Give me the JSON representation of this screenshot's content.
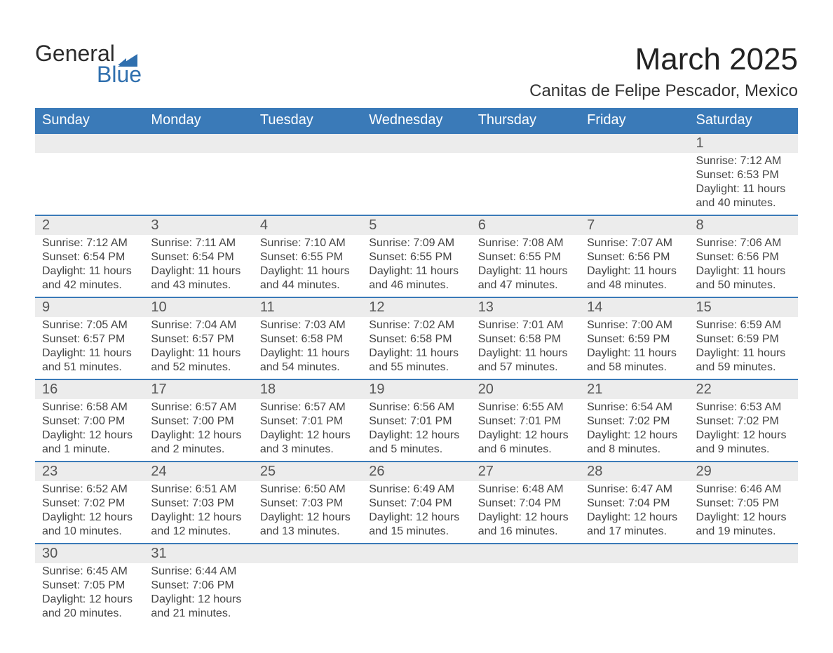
{
  "brand": {
    "word1": "General",
    "word2": "Blue",
    "accent": "#2f6fae"
  },
  "title": "March 2025",
  "location": "Canitas de Felipe Pescador, Mexico",
  "header_bg": "#3a7ab8",
  "stripe_bg": "#ececec",
  "columns": [
    "Sunday",
    "Monday",
    "Tuesday",
    "Wednesday",
    "Thursday",
    "Friday",
    "Saturday"
  ],
  "weeks": [
    {
      "days": [
        {
          "n": "",
          "sunrise": "",
          "sunset": "",
          "daylight1": "",
          "daylight2": ""
        },
        {
          "n": "",
          "sunrise": "",
          "sunset": "",
          "daylight1": "",
          "daylight2": ""
        },
        {
          "n": "",
          "sunrise": "",
          "sunset": "",
          "daylight1": "",
          "daylight2": ""
        },
        {
          "n": "",
          "sunrise": "",
          "sunset": "",
          "daylight1": "",
          "daylight2": ""
        },
        {
          "n": "",
          "sunrise": "",
          "sunset": "",
          "daylight1": "",
          "daylight2": ""
        },
        {
          "n": "",
          "sunrise": "",
          "sunset": "",
          "daylight1": "",
          "daylight2": ""
        },
        {
          "n": "1",
          "sunrise": "Sunrise: 7:12 AM",
          "sunset": "Sunset: 6:53 PM",
          "daylight1": "Daylight: 11 hours",
          "daylight2": "and 40 minutes."
        }
      ]
    },
    {
      "days": [
        {
          "n": "2",
          "sunrise": "Sunrise: 7:12 AM",
          "sunset": "Sunset: 6:54 PM",
          "daylight1": "Daylight: 11 hours",
          "daylight2": "and 42 minutes."
        },
        {
          "n": "3",
          "sunrise": "Sunrise: 7:11 AM",
          "sunset": "Sunset: 6:54 PM",
          "daylight1": "Daylight: 11 hours",
          "daylight2": "and 43 minutes."
        },
        {
          "n": "4",
          "sunrise": "Sunrise: 7:10 AM",
          "sunset": "Sunset: 6:55 PM",
          "daylight1": "Daylight: 11 hours",
          "daylight2": "and 44 minutes."
        },
        {
          "n": "5",
          "sunrise": "Sunrise: 7:09 AM",
          "sunset": "Sunset: 6:55 PM",
          "daylight1": "Daylight: 11 hours",
          "daylight2": "and 46 minutes."
        },
        {
          "n": "6",
          "sunrise": "Sunrise: 7:08 AM",
          "sunset": "Sunset: 6:55 PM",
          "daylight1": "Daylight: 11 hours",
          "daylight2": "and 47 minutes."
        },
        {
          "n": "7",
          "sunrise": "Sunrise: 7:07 AM",
          "sunset": "Sunset: 6:56 PM",
          "daylight1": "Daylight: 11 hours",
          "daylight2": "and 48 minutes."
        },
        {
          "n": "8",
          "sunrise": "Sunrise: 7:06 AM",
          "sunset": "Sunset: 6:56 PM",
          "daylight1": "Daylight: 11 hours",
          "daylight2": "and 50 minutes."
        }
      ]
    },
    {
      "days": [
        {
          "n": "9",
          "sunrise": "Sunrise: 7:05 AM",
          "sunset": "Sunset: 6:57 PM",
          "daylight1": "Daylight: 11 hours",
          "daylight2": "and 51 minutes."
        },
        {
          "n": "10",
          "sunrise": "Sunrise: 7:04 AM",
          "sunset": "Sunset: 6:57 PM",
          "daylight1": "Daylight: 11 hours",
          "daylight2": "and 52 minutes."
        },
        {
          "n": "11",
          "sunrise": "Sunrise: 7:03 AM",
          "sunset": "Sunset: 6:58 PM",
          "daylight1": "Daylight: 11 hours",
          "daylight2": "and 54 minutes."
        },
        {
          "n": "12",
          "sunrise": "Sunrise: 7:02 AM",
          "sunset": "Sunset: 6:58 PM",
          "daylight1": "Daylight: 11 hours",
          "daylight2": "and 55 minutes."
        },
        {
          "n": "13",
          "sunrise": "Sunrise: 7:01 AM",
          "sunset": "Sunset: 6:58 PM",
          "daylight1": "Daylight: 11 hours",
          "daylight2": "and 57 minutes."
        },
        {
          "n": "14",
          "sunrise": "Sunrise: 7:00 AM",
          "sunset": "Sunset: 6:59 PM",
          "daylight1": "Daylight: 11 hours",
          "daylight2": "and 58 minutes."
        },
        {
          "n": "15",
          "sunrise": "Sunrise: 6:59 AM",
          "sunset": "Sunset: 6:59 PM",
          "daylight1": "Daylight: 11 hours",
          "daylight2": "and 59 minutes."
        }
      ]
    },
    {
      "days": [
        {
          "n": "16",
          "sunrise": "Sunrise: 6:58 AM",
          "sunset": "Sunset: 7:00 PM",
          "daylight1": "Daylight: 12 hours",
          "daylight2": "and 1 minute."
        },
        {
          "n": "17",
          "sunrise": "Sunrise: 6:57 AM",
          "sunset": "Sunset: 7:00 PM",
          "daylight1": "Daylight: 12 hours",
          "daylight2": "and 2 minutes."
        },
        {
          "n": "18",
          "sunrise": "Sunrise: 6:57 AM",
          "sunset": "Sunset: 7:01 PM",
          "daylight1": "Daylight: 12 hours",
          "daylight2": "and 3 minutes."
        },
        {
          "n": "19",
          "sunrise": "Sunrise: 6:56 AM",
          "sunset": "Sunset: 7:01 PM",
          "daylight1": "Daylight: 12 hours",
          "daylight2": "and 5 minutes."
        },
        {
          "n": "20",
          "sunrise": "Sunrise: 6:55 AM",
          "sunset": "Sunset: 7:01 PM",
          "daylight1": "Daylight: 12 hours",
          "daylight2": "and 6 minutes."
        },
        {
          "n": "21",
          "sunrise": "Sunrise: 6:54 AM",
          "sunset": "Sunset: 7:02 PM",
          "daylight1": "Daylight: 12 hours",
          "daylight2": "and 8 minutes."
        },
        {
          "n": "22",
          "sunrise": "Sunrise: 6:53 AM",
          "sunset": "Sunset: 7:02 PM",
          "daylight1": "Daylight: 12 hours",
          "daylight2": "and 9 minutes."
        }
      ]
    },
    {
      "days": [
        {
          "n": "23",
          "sunrise": "Sunrise: 6:52 AM",
          "sunset": "Sunset: 7:02 PM",
          "daylight1": "Daylight: 12 hours",
          "daylight2": "and 10 minutes."
        },
        {
          "n": "24",
          "sunrise": "Sunrise: 6:51 AM",
          "sunset": "Sunset: 7:03 PM",
          "daylight1": "Daylight: 12 hours",
          "daylight2": "and 12 minutes."
        },
        {
          "n": "25",
          "sunrise": "Sunrise: 6:50 AM",
          "sunset": "Sunset: 7:03 PM",
          "daylight1": "Daylight: 12 hours",
          "daylight2": "and 13 minutes."
        },
        {
          "n": "26",
          "sunrise": "Sunrise: 6:49 AM",
          "sunset": "Sunset: 7:04 PM",
          "daylight1": "Daylight: 12 hours",
          "daylight2": "and 15 minutes."
        },
        {
          "n": "27",
          "sunrise": "Sunrise: 6:48 AM",
          "sunset": "Sunset: 7:04 PM",
          "daylight1": "Daylight: 12 hours",
          "daylight2": "and 16 minutes."
        },
        {
          "n": "28",
          "sunrise": "Sunrise: 6:47 AM",
          "sunset": "Sunset: 7:04 PM",
          "daylight1": "Daylight: 12 hours",
          "daylight2": "and 17 minutes."
        },
        {
          "n": "29",
          "sunrise": "Sunrise: 6:46 AM",
          "sunset": "Sunset: 7:05 PM",
          "daylight1": "Daylight: 12 hours",
          "daylight2": "and 19 minutes."
        }
      ]
    },
    {
      "days": [
        {
          "n": "30",
          "sunrise": "Sunrise: 6:45 AM",
          "sunset": "Sunset: 7:05 PM",
          "daylight1": "Daylight: 12 hours",
          "daylight2": "and 20 minutes."
        },
        {
          "n": "31",
          "sunrise": "Sunrise: 6:44 AM",
          "sunset": "Sunset: 7:06 PM",
          "daylight1": "Daylight: 12 hours",
          "daylight2": "and 21 minutes."
        },
        {
          "n": "",
          "sunrise": "",
          "sunset": "",
          "daylight1": "",
          "daylight2": ""
        },
        {
          "n": "",
          "sunrise": "",
          "sunset": "",
          "daylight1": "",
          "daylight2": ""
        },
        {
          "n": "",
          "sunrise": "",
          "sunset": "",
          "daylight1": "",
          "daylight2": ""
        },
        {
          "n": "",
          "sunrise": "",
          "sunset": "",
          "daylight1": "",
          "daylight2": ""
        },
        {
          "n": "",
          "sunrise": "",
          "sunset": "",
          "daylight1": "",
          "daylight2": ""
        }
      ]
    }
  ]
}
